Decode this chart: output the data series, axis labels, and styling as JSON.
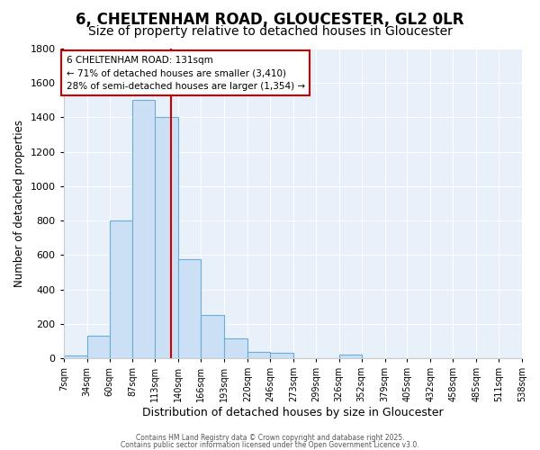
{
  "title_line1": "6, CHELTENHAM ROAD, GLOUCESTER, GL2 0LR",
  "title_line2": "Size of property relative to detached houses in Gloucester",
  "xlabel": "Distribution of detached houses by size in Gloucester",
  "ylabel": "Number of detached properties",
  "footer_line1": "Contains HM Land Registry data © Crown copyright and database right 2025.",
  "footer_line2": "Contains public sector information licensed under the Open Government Licence v3.0.",
  "bins": [
    7,
    34,
    60,
    87,
    113,
    140,
    166,
    193,
    220,
    246,
    273,
    299,
    326,
    352,
    379,
    405,
    432,
    458,
    485,
    511,
    538
  ],
  "counts": [
    15,
    130,
    800,
    1500,
    1400,
    575,
    250,
    115,
    35,
    30,
    0,
    0,
    20,
    0,
    0,
    0,
    0,
    0,
    0,
    0
  ],
  "bar_color": "#cce0f5",
  "bar_edge_color": "#6aaed6",
  "bg_color": "#ffffff",
  "plot_bg_color": "#e8f0fa",
  "grid_color": "#ffffff",
  "red_line_x": 131,
  "annotation_text": "6 CHELTENHAM ROAD: 131sqm\n← 71% of detached houses are smaller (3,410)\n28% of semi-detached houses are larger (1,354) →",
  "annotation_box_color": "#ffffff",
  "annotation_box_edge": "#cc0000",
  "ylim": [
    0,
    1800
  ],
  "yticks": [
    0,
    200,
    400,
    600,
    800,
    1000,
    1200,
    1400,
    1600,
    1800
  ],
  "title_fontsize": 12,
  "subtitle_fontsize": 10,
  "tick_labels": [
    "7sqm",
    "34sqm",
    "60sqm",
    "87sqm",
    "113sqm",
    "140sqm",
    "166sqm",
    "193sqm",
    "220sqm",
    "246sqm",
    "273sqm",
    "299sqm",
    "326sqm",
    "352sqm",
    "379sqm",
    "405sqm",
    "432sqm",
    "458sqm",
    "485sqm",
    "511sqm",
    "538sqm"
  ]
}
